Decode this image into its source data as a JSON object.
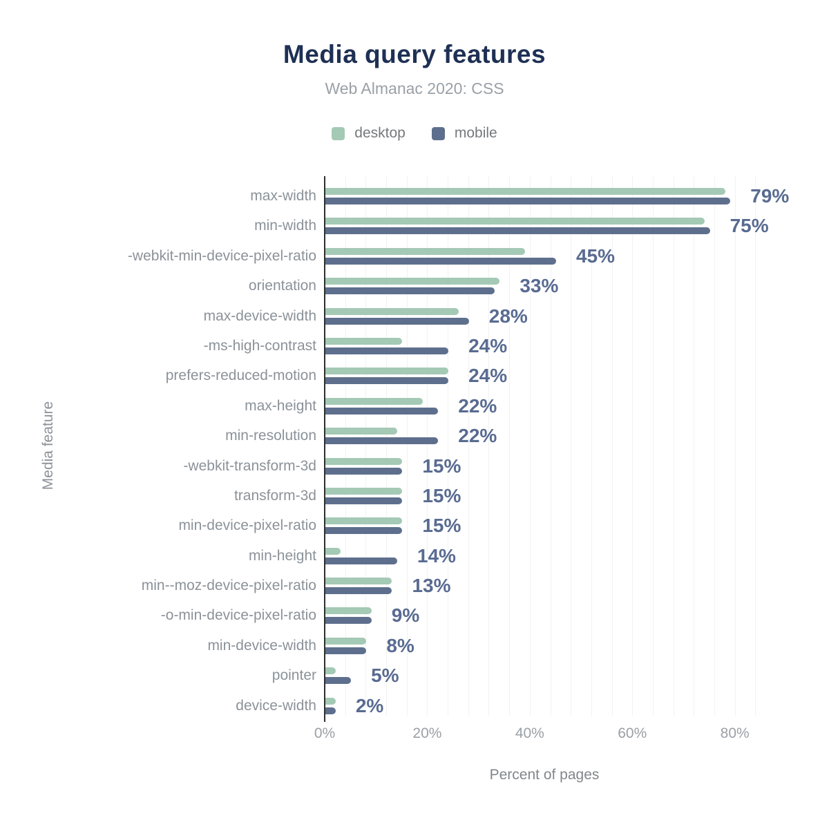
{
  "title": "Media query features",
  "subtitle": "Web Almanac 2020: CSS",
  "colors": {
    "desktop": "#a4c9b5",
    "mobile": "#5e6f8d",
    "value_label": "#596b91",
    "title": "#1e3054",
    "subtitle": "#9aa0a6",
    "axis_text": "#8b9299",
    "tick_text": "#9aa0a6",
    "gridline": "#f2f2f4",
    "axis_line": "#2e2e2e",
    "background": "#ffffff"
  },
  "chart_data": {
    "type": "bar",
    "orientation": "horizontal",
    "title": "Media query features",
    "subtitle": "Web Almanac 2020: CSS",
    "xlabel": "Percent of pages",
    "ylabel": "Media feature",
    "legend_position": "top",
    "grid": {
      "axis": "x",
      "minor_step_pct": 4
    },
    "xlim": [
      0,
      85.7
    ],
    "xticks": [
      {
        "value": 0,
        "label": "0%"
      },
      {
        "value": 20,
        "label": "20%"
      },
      {
        "value": 40,
        "label": "40%"
      },
      {
        "value": 60,
        "label": "60%"
      },
      {
        "value": 80,
        "label": "80%"
      }
    ],
    "categories": [
      "max-width",
      "min-width",
      "-webkit-min-device-pixel-ratio",
      "orientation",
      "max-device-width",
      "-ms-high-contrast",
      "prefers-reduced-motion",
      "max-height",
      "min-resolution",
      "-webkit-transform-3d",
      "transform-3d",
      "min-device-pixel-ratio",
      "min-height",
      "min--moz-device-pixel-ratio",
      "-o-min-device-pixel-ratio",
      "min-device-width",
      "pointer",
      "device-width"
    ],
    "series": [
      {
        "name": "desktop",
        "color": "#a4c9b5",
        "values": [
          78,
          74,
          39,
          34,
          26,
          15,
          24,
          19,
          14,
          15,
          15,
          15,
          3,
          13,
          9,
          8,
          2,
          2
        ]
      },
      {
        "name": "mobile",
        "color": "#5e6f8d",
        "values": [
          79,
          75,
          45,
          33,
          28,
          24,
          24,
          22,
          22,
          15,
          15,
          15,
          14,
          13,
          9,
          8,
          5,
          2
        ]
      }
    ],
    "value_labels": [
      "79%",
      "75%",
      "45%",
      "33%",
      "28%",
      "24%",
      "24%",
      "22%",
      "22%",
      "15%",
      "15%",
      "15%",
      "14%",
      "13%",
      "9%",
      "8%",
      "5%",
      "2%"
    ]
  },
  "layout_note": "value labels show the mobile series percentage"
}
